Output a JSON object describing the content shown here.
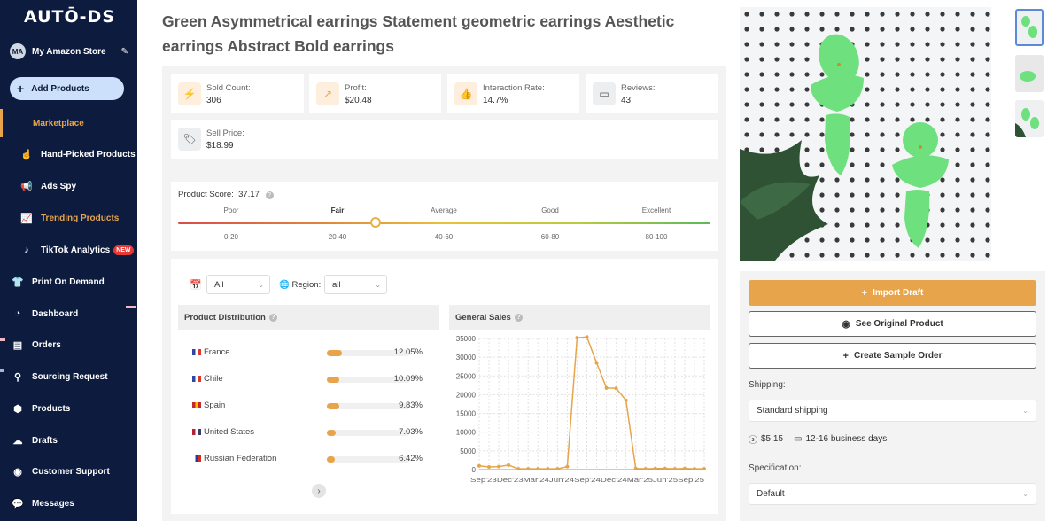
{
  "brand": {
    "logo": "AUTŌ-DS"
  },
  "store": {
    "initials": "MA",
    "name": "My Amazon Store"
  },
  "sidebar": {
    "add_button": "Add Products",
    "items": [
      {
        "label": "Marketplace",
        "icon": "marketplace-icon"
      },
      {
        "label": "Hand-Picked Products",
        "icon": "hand-icon"
      },
      {
        "label": "Ads Spy",
        "icon": "megaphone-icon"
      },
      {
        "label": "Trending Products",
        "icon": "chart-icon"
      },
      {
        "label": "TikTok Analytics",
        "icon": "tiktok-icon",
        "badge": "NEW"
      },
      {
        "label": "Print On Demand",
        "icon": "shirt-icon"
      },
      {
        "label": "Dashboard",
        "icon": "gauge-icon"
      },
      {
        "label": "Orders",
        "icon": "orders-icon"
      },
      {
        "label": "Sourcing Request",
        "icon": "sourcing-icon"
      },
      {
        "label": "Products",
        "icon": "box-icon"
      },
      {
        "label": "Drafts",
        "icon": "cloud-icon"
      },
      {
        "label": "Customer Support",
        "icon": "support-icon"
      },
      {
        "label": "Messages",
        "icon": "message-icon"
      }
    ]
  },
  "product": {
    "title": "Green Asymmetrical earrings Statement geometric earrings Aesthetic earrings Abstract Bold earrings"
  },
  "stats": [
    {
      "label": "Sold Count:",
      "value": "306",
      "icon": "bolt-icon"
    },
    {
      "label": "Profit:",
      "value": "$20.48",
      "icon": "trend-icon"
    },
    {
      "label": "Interaction Rate:",
      "value": "14.7%",
      "icon": "thumbs-up-icon"
    },
    {
      "label": "Reviews:",
      "value": "43",
      "icon": "comment-icon"
    },
    {
      "label": "Sell Price:",
      "value": "$18.99",
      "icon": "tag-icon"
    }
  ],
  "score": {
    "label": "Product Score:",
    "value": "37.17",
    "value_num": 37.17,
    "categories": [
      "Poor",
      "Fair",
      "Average",
      "Good",
      "Excellent"
    ],
    "ranges": [
      "0-20",
      "20-40",
      "40-60",
      "60-80",
      "80-100"
    ],
    "active": "Fair"
  },
  "filters": {
    "date": "All",
    "region_label": "Region:",
    "region": "all"
  },
  "distribution": {
    "title": "Product Distribution",
    "rows": [
      {
        "country": "France",
        "percent": "12.05%",
        "value": 12.05,
        "flag_colors": [
          "#2b4aa0",
          "#ffffff",
          "#e0362c"
        ]
      },
      {
        "country": "Chile",
        "percent": "10.09%",
        "value": 10.09,
        "flag_colors": [
          "#2b4aa0",
          "#ffffff",
          "#e0362c"
        ]
      },
      {
        "country": "Spain",
        "percent": "9.83%",
        "value": 9.83,
        "flag_colors": [
          "#c8262d",
          "#f5c400",
          "#c8262d"
        ]
      },
      {
        "country": "United States",
        "percent": "7.03%",
        "value": 7.03,
        "flag_colors": [
          "#b22234",
          "#ffffff",
          "#3c3b6e"
        ]
      },
      {
        "country": "Russian Federation",
        "percent": "6.42%",
        "value": 6.42,
        "flag_colors": [
          "#ffffff",
          "#1c3fa8",
          "#d52b1e"
        ]
      }
    ]
  },
  "chart_data": {
    "type": "line",
    "title": "General Sales",
    "ylim": [
      0,
      35000
    ],
    "yticks": [
      0,
      5000,
      10000,
      15000,
      20000,
      25000,
      30000,
      35000
    ],
    "x_tick_text": "Sep'23Dec'23Mar'24Jun'24Sep'24Dec'24Mar'25Jun'25Sep'25",
    "values": [
      1000,
      700,
      800,
      1200,
      200,
      200,
      200,
      200,
      200,
      800,
      35200,
      35400,
      28500,
      21800,
      21700,
      18500,
      300,
      200,
      300,
      300,
      200,
      300,
      200,
      200
    ],
    "color": "#e8a44a"
  },
  "actions": {
    "import": "Import Draft",
    "see_original": "See Original Product",
    "sample_order": "Create Sample Order"
  },
  "shipping": {
    "label": "Shipping:",
    "method": "Standard shipping",
    "price": "$5.15",
    "days": "12-16 business days"
  },
  "specification": {
    "label": "Specification:",
    "value": "Default"
  },
  "colors": {
    "sidebar": "#0d1b3e",
    "accent": "#e8a44a",
    "earring": "#6ee07e"
  }
}
